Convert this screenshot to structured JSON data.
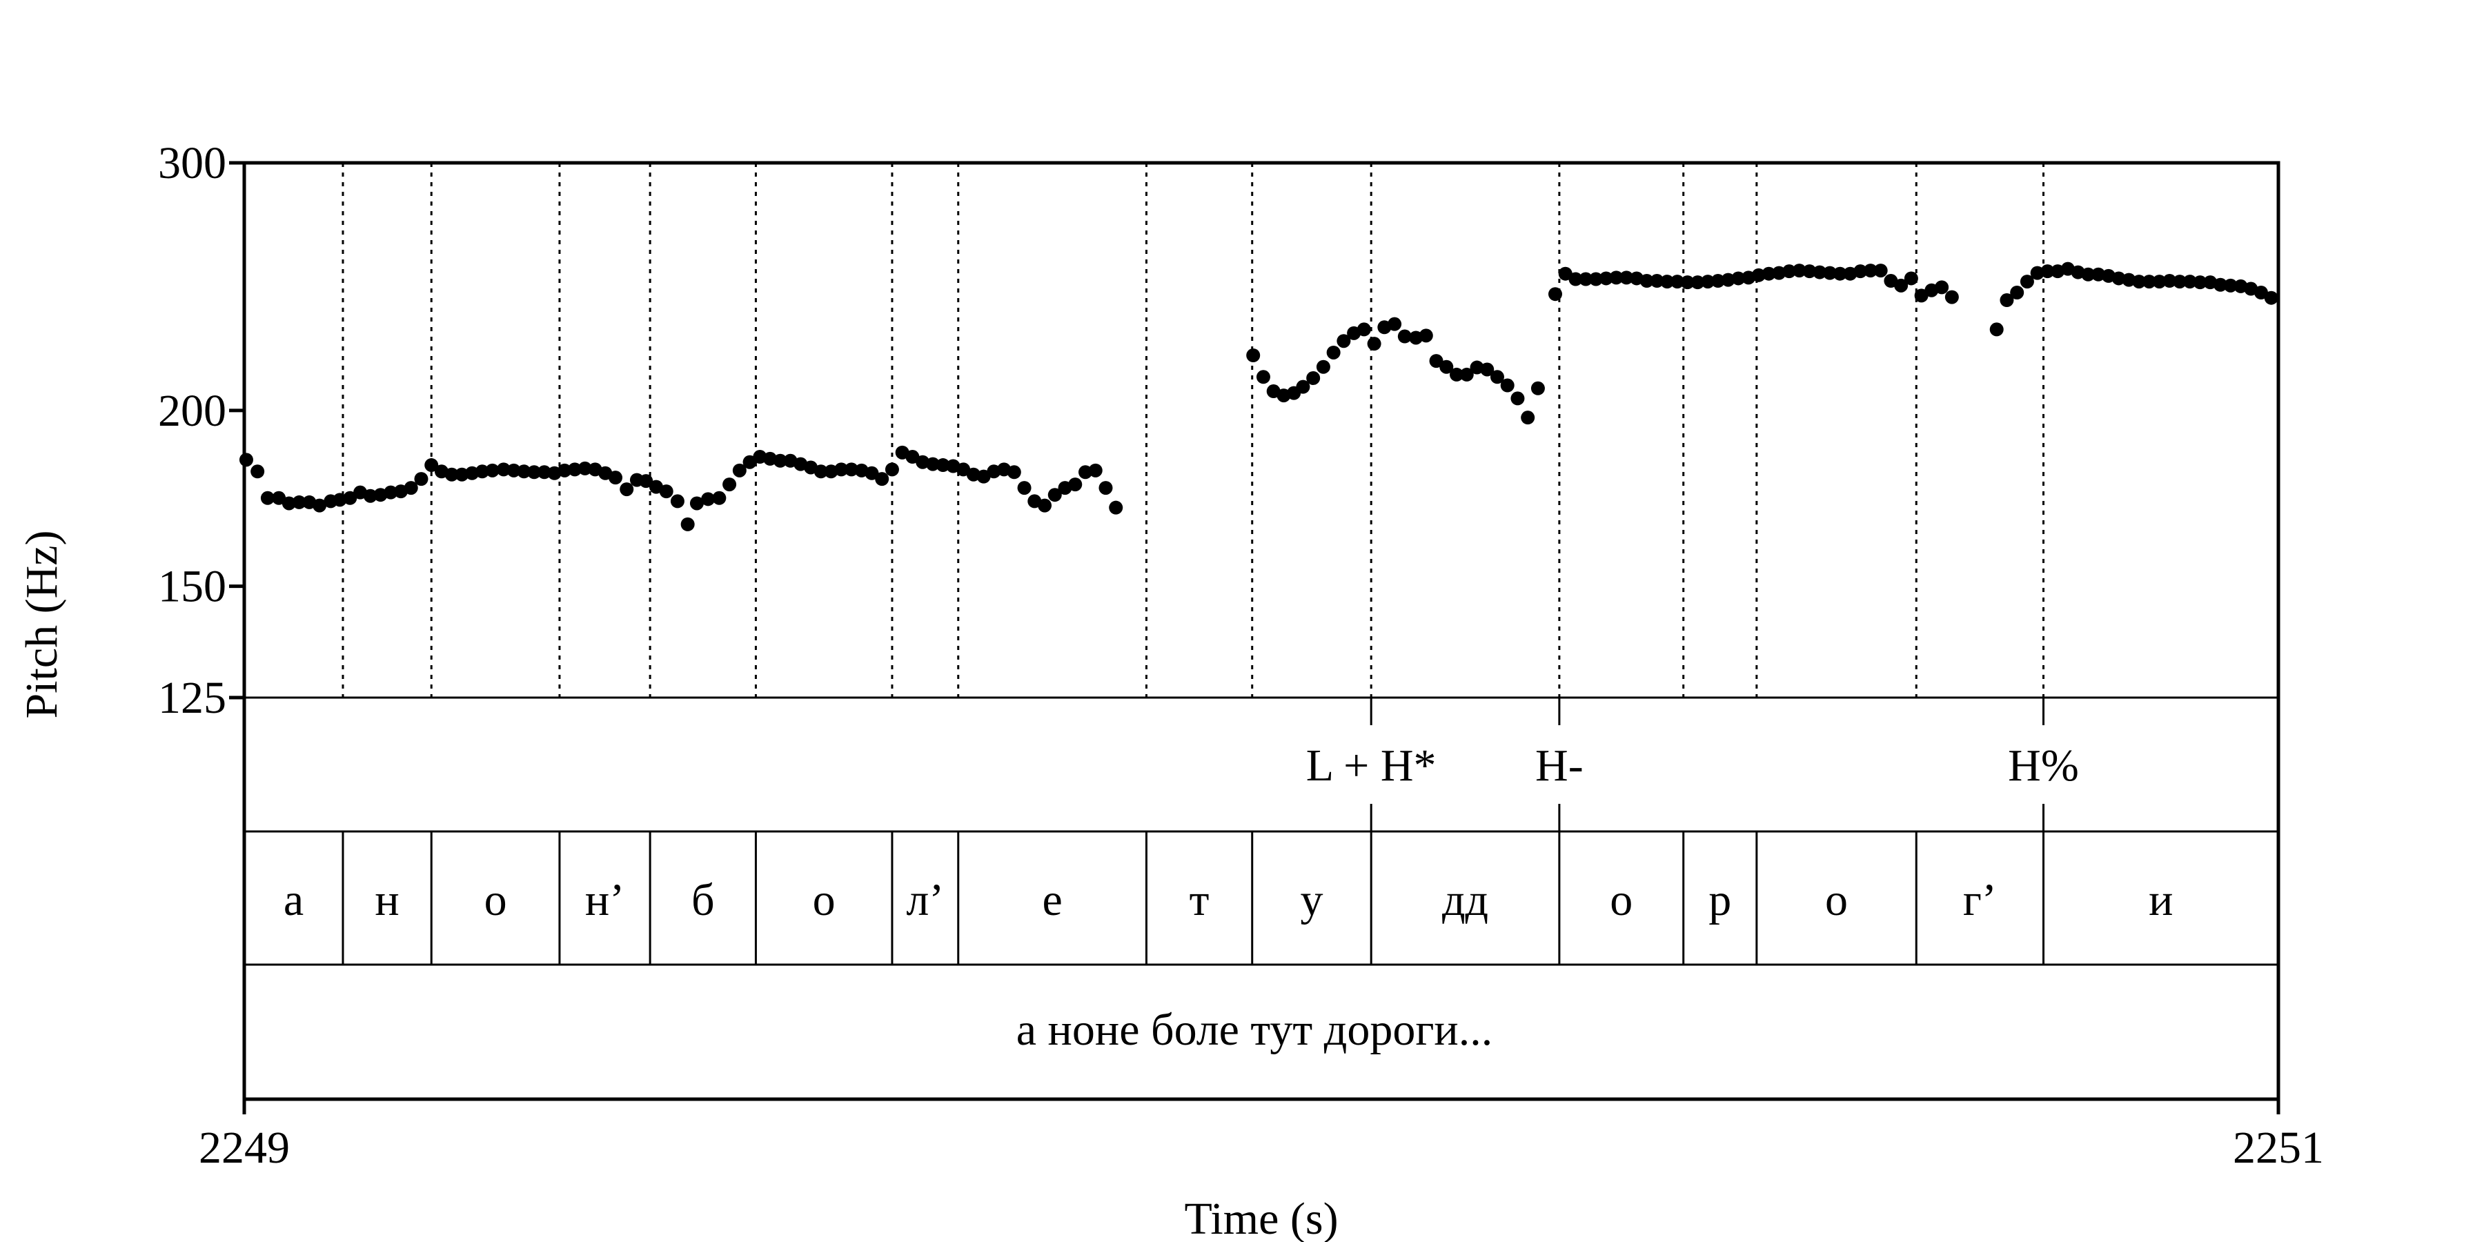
{
  "chart_data": {
    "type": "scatter",
    "title": "",
    "xlabel": "Time (s)",
    "ylabel": "Pitch (Hz)",
    "xlim": [
      2249,
      2251
    ],
    "ylim": [
      125,
      300
    ],
    "y_scale": "log",
    "x_ticks": [
      {
        "value": 2249,
        "label": "2249"
      },
      {
        "value": 2251,
        "label": "2251"
      }
    ],
    "y_ticks": [
      {
        "value": 300,
        "label": "300"
      },
      {
        "value": 200,
        "label": "200"
      },
      {
        "value": 150,
        "label": "150"
      },
      {
        "value": 125,
        "label": "125"
      }
    ],
    "segment_boundaries": [
      2249.0,
      2249.097,
      2249.184,
      2249.31,
      2249.399,
      2249.503,
      2249.637,
      2249.702,
      2249.887,
      2249.991,
      2250.108,
      2250.293,
      2250.415,
      2250.487,
      2250.644,
      2250.769,
      2251.0
    ],
    "segments": [
      {
        "label": "а",
        "start": 2249.0,
        "end": 2249.097
      },
      {
        "label": "н",
        "start": 2249.097,
        "end": 2249.184
      },
      {
        "label": "о",
        "start": 2249.184,
        "end": 2249.31
      },
      {
        "label": "н’",
        "start": 2249.31,
        "end": 2249.399
      },
      {
        "label": "б",
        "start": 2249.399,
        "end": 2249.503
      },
      {
        "label": "о",
        "start": 2249.503,
        "end": 2249.637
      },
      {
        "label": "л’",
        "start": 2249.637,
        "end": 2249.702
      },
      {
        "label": "е",
        "start": 2249.702,
        "end": 2249.887
      },
      {
        "label": "т",
        "start": 2249.887,
        "end": 2249.991
      },
      {
        "label": "у",
        "start": 2249.991,
        "end": 2250.108
      },
      {
        "label": "дд",
        "start": 2250.108,
        "end": 2250.293
      },
      {
        "label": "о",
        "start": 2250.293,
        "end": 2250.415
      },
      {
        "label": "р",
        "start": 2250.415,
        "end": 2250.487
      },
      {
        "label": "о",
        "start": 2250.487,
        "end": 2250.644
      },
      {
        "label": "г’",
        "start": 2250.644,
        "end": 2250.769
      },
      {
        "label": "и",
        "start": 2250.769,
        "end": 2251.0
      }
    ],
    "tones": [
      {
        "label": "L + H*",
        "time": 2250.108
      },
      {
        "label": "H-",
        "time": 2250.293
      },
      {
        "label": "H%",
        "time": 2250.769
      }
    ],
    "sentence": "а ноне боле тут дороги...",
    "series": [
      {
        "points": [
          [
            2249.002,
            184.5
          ],
          [
            2249.013,
            181.0
          ],
          [
            2249.023,
            173.3
          ],
          [
            2249.034,
            173.3
          ],
          [
            2249.044,
            171.8
          ],
          [
            2249.054,
            172.1
          ],
          [
            2249.064,
            172.1
          ],
          [
            2249.074,
            171.2
          ],
          [
            2249.085,
            172.4
          ],
          [
            2249.094,
            172.8
          ],
          [
            2249.104,
            173.3
          ],
          [
            2249.114,
            174.9
          ],
          [
            2249.124,
            173.9
          ],
          [
            2249.134,
            174.2
          ],
          [
            2249.144,
            174.9
          ],
          [
            2249.154,
            175.2
          ],
          [
            2249.164,
            176.2
          ],
          [
            2249.174,
            178.8
          ],
          [
            2249.184,
            182.9
          ],
          [
            2249.194,
            181.0
          ],
          [
            2249.204,
            180.1
          ],
          [
            2249.214,
            180.1
          ],
          [
            2249.224,
            180.5
          ],
          [
            2249.234,
            181.0
          ],
          [
            2249.244,
            181.3
          ],
          [
            2249.255,
            181.6
          ],
          [
            2249.265,
            181.3
          ],
          [
            2249.275,
            181.0
          ],
          [
            2249.285,
            180.8
          ],
          [
            2249.295,
            180.8
          ],
          [
            2249.305,
            180.5
          ],
          [
            2249.315,
            181.3
          ],
          [
            2249.325,
            181.6
          ],
          [
            2249.335,
            181.9
          ],
          [
            2249.345,
            181.6
          ],
          [
            2249.355,
            180.5
          ],
          [
            2249.365,
            179.2
          ],
          [
            2249.376,
            175.8
          ],
          [
            2249.386,
            178.5
          ],
          [
            2249.395,
            178.2
          ],
          [
            2249.405,
            176.5
          ],
          [
            2249.415,
            175.2
          ],
          [
            2249.426,
            172.4
          ],
          [
            2249.436,
            166.0
          ],
          [
            2249.445,
            171.8
          ],
          [
            2249.456,
            173.0
          ],
          [
            2249.467,
            173.3
          ],
          [
            2249.477,
            177.2
          ],
          [
            2249.487,
            181.3
          ],
          [
            2249.497,
            183.8
          ],
          [
            2249.507,
            185.4
          ],
          [
            2249.517,
            184.8
          ],
          [
            2249.527,
            184.2
          ],
          [
            2249.537,
            184.2
          ],
          [
            2249.547,
            183.2
          ],
          [
            2249.557,
            182.2
          ],
          [
            2249.567,
            181.0
          ],
          [
            2249.577,
            181.0
          ],
          [
            2249.587,
            181.6
          ],
          [
            2249.597,
            181.6
          ],
          [
            2249.607,
            181.3
          ],
          [
            2249.617,
            180.5
          ],
          [
            2249.627,
            178.8
          ],
          [
            2249.637,
            181.6
          ],
          [
            2249.647,
            186.7
          ],
          [
            2249.657,
            185.4
          ],
          [
            2249.667,
            183.8
          ],
          [
            2249.677,
            183.2
          ],
          [
            2249.687,
            182.9
          ],
          [
            2249.697,
            182.6
          ],
          [
            2249.707,
            181.6
          ],
          [
            2249.717,
            180.1
          ],
          [
            2249.727,
            179.5
          ],
          [
            2249.737,
            181.0
          ],
          [
            2249.747,
            181.6
          ],
          [
            2249.757,
            180.8
          ],
          [
            2249.767,
            176.2
          ],
          [
            2249.777,
            172.4
          ],
          [
            2249.787,
            171.2
          ],
          [
            2249.797,
            174.2
          ],
          [
            2249.807,
            176.2
          ],
          [
            2249.817,
            177.2
          ],
          [
            2249.827,
            180.8
          ],
          [
            2249.837,
            181.3
          ],
          [
            2249.847,
            176.2
          ],
          [
            2249.857,
            170.6
          ],
          [
            2249.992,
            218.9
          ],
          [
            2250.002,
            211.3
          ],
          [
            2250.012,
            206.4
          ],
          [
            2250.022,
            205.0
          ],
          [
            2250.032,
            205.8
          ],
          [
            2250.041,
            207.9
          ],
          [
            2250.051,
            210.9
          ],
          [
            2250.061,
            214.8
          ],
          [
            2250.071,
            219.9
          ],
          [
            2250.081,
            224.1
          ],
          [
            2250.091,
            227.0
          ],
          [
            2250.101,
            228.4
          ],
          [
            2250.111,
            223.1
          ],
          [
            2250.121,
            229.2
          ],
          [
            2250.131,
            230.4
          ],
          [
            2250.141,
            225.8
          ],
          [
            2250.152,
            225.3
          ],
          [
            2250.162,
            226.1
          ],
          [
            2250.172,
            216.9
          ],
          [
            2250.182,
            214.8
          ],
          [
            2250.192,
            212.1
          ],
          [
            2250.202,
            212.1
          ],
          [
            2250.212,
            214.6
          ],
          [
            2250.222,
            213.9
          ],
          [
            2250.232,
            211.3
          ],
          [
            2250.242,
            208.4
          ],
          [
            2250.252,
            204.0
          ],
          [
            2250.262,
            197.7
          ],
          [
            2250.272,
            207.4
          ],
          [
            2250.289,
            242.0
          ],
          [
            2250.299,
            250.2
          ],
          [
            2250.309,
            248.0
          ],
          [
            2250.319,
            248.0
          ],
          [
            2250.329,
            248.0
          ],
          [
            2250.339,
            248.3
          ],
          [
            2250.349,
            248.6
          ],
          [
            2250.359,
            248.6
          ],
          [
            2250.369,
            248.3
          ],
          [
            2250.379,
            247.3
          ],
          [
            2250.389,
            247.3
          ],
          [
            2250.399,
            247.0
          ],
          [
            2250.409,
            247.0
          ],
          [
            2250.419,
            246.7
          ],
          [
            2250.429,
            246.7
          ],
          [
            2250.439,
            247.0
          ],
          [
            2250.449,
            247.3
          ],
          [
            2250.459,
            247.7
          ],
          [
            2250.469,
            248.3
          ],
          [
            2250.479,
            248.6
          ],
          [
            2250.489,
            249.6
          ],
          [
            2250.499,
            250.2
          ],
          [
            2250.509,
            250.5
          ],
          [
            2250.519,
            251.2
          ],
          [
            2250.529,
            251.5
          ],
          [
            2250.539,
            251.2
          ],
          [
            2250.549,
            250.8
          ],
          [
            2250.559,
            250.5
          ],
          [
            2250.569,
            250.2
          ],
          [
            2250.579,
            250.2
          ],
          [
            2250.589,
            251.2
          ],
          [
            2250.599,
            251.5
          ],
          [
            2250.609,
            251.5
          ],
          [
            2250.619,
            247.3
          ],
          [
            2250.629,
            245.4
          ],
          [
            2250.639,
            248.3
          ],
          [
            2250.649,
            241.4
          ],
          [
            2250.659,
            243.5
          ],
          [
            2250.669,
            244.7
          ],
          [
            2250.679,
            240.8
          ],
          [
            2250.723,
            228.4
          ],
          [
            2250.733,
            239.6
          ],
          [
            2250.743,
            242.6
          ],
          [
            2250.753,
            247.0
          ],
          [
            2250.763,
            250.5
          ],
          [
            2250.773,
            251.2
          ],
          [
            2250.783,
            251.2
          ],
          [
            2250.793,
            252.2
          ],
          [
            2250.803,
            250.8
          ],
          [
            2250.813,
            249.9
          ],
          [
            2250.823,
            249.9
          ],
          [
            2250.833,
            249.3
          ],
          [
            2250.843,
            248.3
          ],
          [
            2250.853,
            247.7
          ],
          [
            2250.863,
            247.0
          ],
          [
            2250.873,
            247.0
          ],
          [
            2250.883,
            247.0
          ],
          [
            2250.893,
            247.3
          ],
          [
            2250.903,
            247.0
          ],
          [
            2250.913,
            247.0
          ],
          [
            2250.923,
            246.7
          ],
          [
            2250.933,
            246.7
          ],
          [
            2250.943,
            245.7
          ],
          [
            2250.953,
            245.4
          ],
          [
            2250.963,
            245.1
          ],
          [
            2250.973,
            244.1
          ],
          [
            2250.983,
            242.6
          ],
          [
            2250.993,
            240.5
          ]
        ]
      }
    ]
  }
}
